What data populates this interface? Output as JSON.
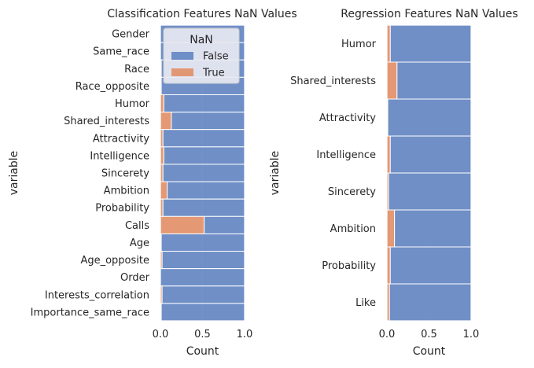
{
  "chart_data": [
    {
      "type": "bar",
      "orientation": "horizontal",
      "stacked": true,
      "title": "Classification Features NaN Values",
      "xlabel": "Count",
      "ylabel": "variable",
      "xlim": [
        0,
        1
      ],
      "xticks": [
        "0.0",
        "0.5",
        "1.0"
      ],
      "grid": true,
      "legend": {
        "title": "NaN",
        "placement": "top-right",
        "entries": [
          "False",
          "True"
        ]
      },
      "categories": [
        "Gender",
        "Same_race",
        "Race",
        "Race_opposite",
        "Humor",
        "Shared_interests",
        "Attractivity",
        "Intelligence",
        "Sincerety",
        "Ambition",
        "Probability",
        "Calls",
        "Age",
        "Age_opposite",
        "Order",
        "Interests_correlation",
        "Importance_same_race"
      ],
      "series": [
        {
          "name": "False",
          "color": "#5b7fbf",
          "values": [
            1.0,
            1.0,
            0.99,
            0.99,
            0.96,
            0.87,
            0.97,
            0.96,
            0.97,
            0.92,
            0.97,
            0.48,
            0.99,
            0.98,
            1.0,
            0.98,
            0.99
          ]
        },
        {
          "name": "True",
          "color": "#e38a5e",
          "values": [
            0.0,
            0.0,
            0.01,
            0.01,
            0.04,
            0.13,
            0.03,
            0.04,
            0.03,
            0.08,
            0.03,
            0.52,
            0.01,
            0.02,
            0.0,
            0.02,
            0.01
          ]
        }
      ]
    },
    {
      "type": "bar",
      "orientation": "horizontal",
      "stacked": true,
      "title": "Regression Features NaN Values",
      "xlabel": "Count",
      "ylabel": "variable",
      "xlim": [
        0,
        1
      ],
      "xticks": [
        "0.0",
        "0.5",
        "1.0"
      ],
      "grid": true,
      "categories": [
        "Humor",
        "Shared_interests",
        "Attractivity",
        "Intelligence",
        "Sincerety",
        "Ambition",
        "Probability",
        "Like"
      ],
      "series": [
        {
          "name": "False",
          "color": "#5b7fbf",
          "values": [
            0.96,
            0.88,
            0.99,
            0.96,
            0.98,
            0.91,
            0.96,
            0.97
          ]
        },
        {
          "name": "True",
          "color": "#e38a5e",
          "values": [
            0.04,
            0.12,
            0.01,
            0.04,
            0.02,
            0.09,
            0.04,
            0.03
          ]
        }
      ]
    }
  ]
}
